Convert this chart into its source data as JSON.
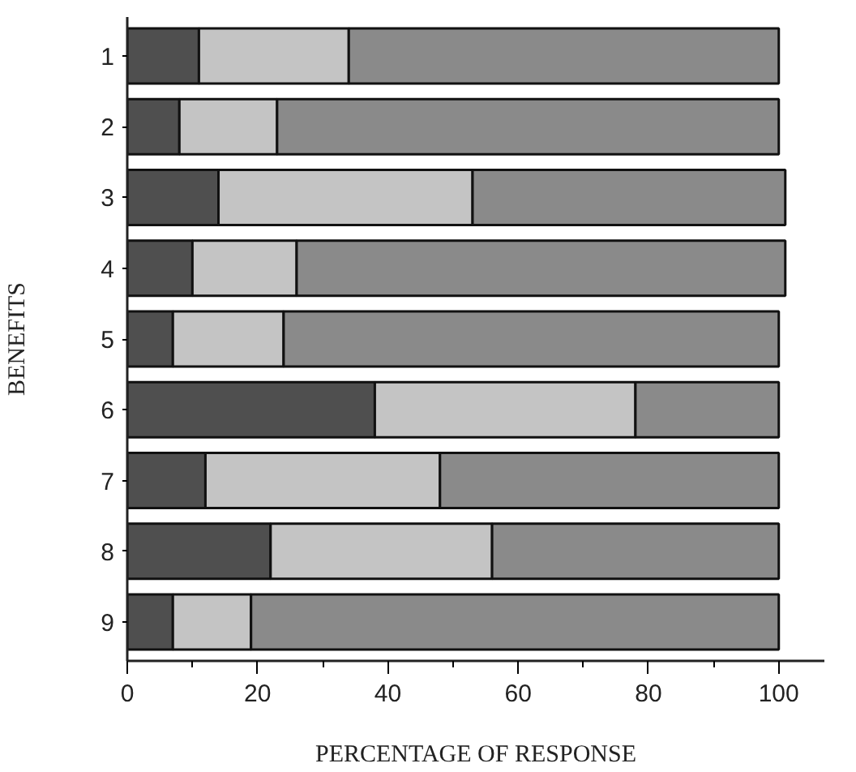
{
  "chart_data": {
    "type": "bar",
    "orientation": "horizontal",
    "stacked": true,
    "xlabel": "PERCENTAGE OF RESPONSE",
    "ylabel": "BENEFITS",
    "categories": [
      "1",
      "2",
      "3",
      "4",
      "5",
      "6",
      "7",
      "8",
      "9"
    ],
    "series": [
      {
        "color": "#4f4f4f",
        "values": [
          11,
          8,
          14,
          10,
          7,
          38,
          12,
          22,
          7
        ]
      },
      {
        "color": "#c4c4c4",
        "values": [
          23,
          15,
          39,
          16,
          17,
          40,
          36,
          34,
          12
        ]
      },
      {
        "color": "#8a8a8a",
        "values": [
          66,
          77,
          48,
          75,
          76,
          22,
          52,
          44,
          81
        ]
      }
    ],
    "xlim": [
      0,
      107
    ],
    "xticks": [
      0,
      20,
      40,
      60,
      80,
      100
    ]
  }
}
